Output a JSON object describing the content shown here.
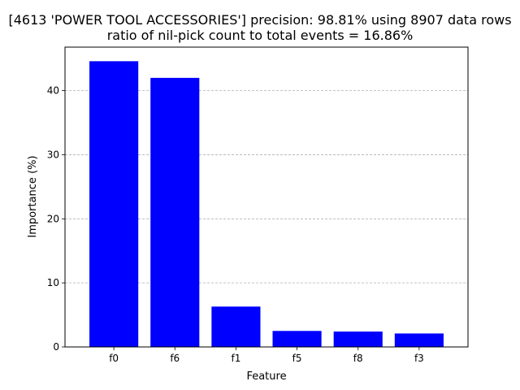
{
  "chart_data": {
    "type": "bar",
    "title": "[4613 'POWER TOOL ACCESSORIES'] precision: 98.81% using 8907 data rows",
    "subtitle": "ratio of nil-pick count to total events = 16.86%",
    "xlabel": "Feature",
    "ylabel": "Importance (%)",
    "categories": [
      "f0",
      "f6",
      "f1",
      "f5",
      "f8",
      "f3"
    ],
    "values": [
      44.6,
      42.0,
      6.3,
      2.5,
      2.4,
      2.1
    ],
    "ylim": [
      0,
      46.8
    ],
    "yticks": [
      0,
      10,
      20,
      30,
      40
    ],
    "grid": "y-axis, dashed",
    "bar_color": "#0000ff",
    "grid_color": "#b0b0b0"
  }
}
